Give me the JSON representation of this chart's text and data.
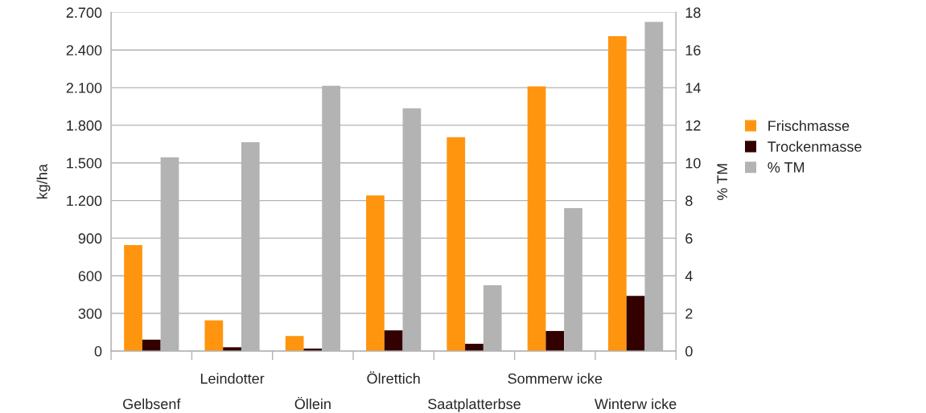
{
  "chart_data": {
    "type": "bar",
    "ylabel": "kg/ha",
    "y2label": "% TM",
    "categories": [
      "Gelbsenf",
      "Leindotter",
      "Öllein",
      "Ölrettich",
      "Saatplatterbse",
      "Sommerw icke",
      "Winterw icke"
    ],
    "series": [
      {
        "name": "Frischmasse",
        "color": "#ff950e",
        "values": [
          845,
          245,
          120,
          1240,
          1705,
          2110,
          2510
        ]
      },
      {
        "name": "Trockenmasse",
        "color": "#330000",
        "values": [
          90,
          30,
          20,
          165,
          58,
          160,
          440
        ]
      },
      {
        "name": "% TM",
        "color": "#b3b3b3",
        "axis": "y2",
        "values": [
          10.3,
          11.1,
          14.1,
          12.9,
          3.5,
          7.6,
          17.5
        ]
      }
    ],
    "ylim": [
      0,
      2700
    ],
    "yticks": [
      {
        "value": 0,
        "label": "0"
      },
      {
        "value": 300,
        "label": "300"
      },
      {
        "value": 600,
        "label": "600"
      },
      {
        "value": 900,
        "label": "900"
      },
      {
        "value": 1200,
        "label": "1.200"
      },
      {
        "value": 1500,
        "label": "1.500"
      },
      {
        "value": 1800,
        "label": "1.800"
      },
      {
        "value": 2100,
        "label": "2.100"
      },
      {
        "value": 2400,
        "label": "2.400"
      },
      {
        "value": 2700,
        "label": "2.700"
      }
    ],
    "y2lim": [
      0,
      18
    ],
    "y2ticks": [
      0,
      2,
      4,
      6,
      8,
      10,
      12,
      14,
      16,
      18
    ],
    "grid": "y",
    "legend": "right"
  }
}
